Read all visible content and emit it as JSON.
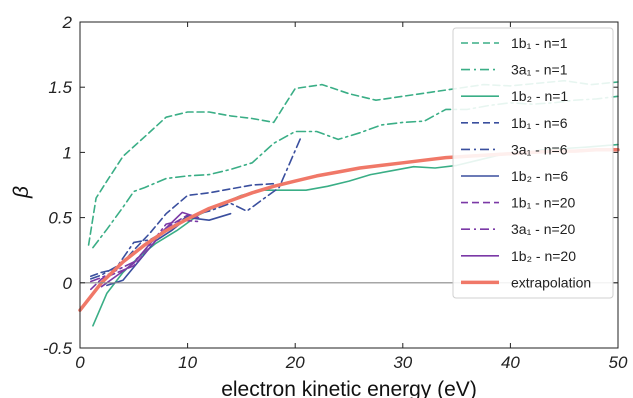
{
  "chart_data": {
    "type": "line",
    "xlabel": "electron kinetic energy (eV)",
    "ylabel": "β",
    "xlim": [
      0,
      50
    ],
    "ylim": [
      -0.5,
      2
    ],
    "xticks": [
      "0",
      "10",
      "20",
      "30",
      "40",
      "50"
    ],
    "yticks": [
      "-0.5",
      "0",
      "0.5",
      "1",
      "1.5",
      "2"
    ],
    "zero_line": true,
    "grid": false,
    "legend_position": "top-right",
    "series": [
      {
        "name": "1b₁ - n=1",
        "color": "#3aae86",
        "dash": "dashed",
        "x": [
          0.8,
          1.5,
          2.5,
          4,
          6,
          8,
          10,
          12,
          14,
          16,
          18,
          20,
          22.5,
          25,
          27.5,
          30,
          32.5,
          35,
          37.5,
          40,
          42.5,
          45,
          47.5,
          50
        ],
        "y": [
          0.29,
          0.65,
          0.78,
          0.97,
          1.12,
          1.27,
          1.31,
          1.31,
          1.28,
          1.26,
          1.23,
          1.49,
          1.52,
          1.45,
          1.4,
          1.43,
          1.46,
          1.49,
          1.52,
          1.51,
          1.53,
          1.55,
          1.52,
          1.54
        ]
      },
      {
        "name": "3a₁ - n=1",
        "color": "#3aae86",
        "dash": "dashdot",
        "x": [
          1.2,
          2.5,
          4,
          5,
          6,
          8,
          10,
          12,
          14,
          16,
          18,
          20,
          22,
          24,
          26,
          28,
          30,
          32,
          34,
          36,
          38,
          40,
          42,
          44,
          46,
          48,
          50
        ],
        "y": [
          0.27,
          0.41,
          0.58,
          0.7,
          0.73,
          0.8,
          0.82,
          0.83,
          0.87,
          0.92,
          1.07,
          1.16,
          1.16,
          1.1,
          1.15,
          1.21,
          1.23,
          1.24,
          1.33,
          1.33,
          1.36,
          1.38,
          1.37,
          1.38,
          1.4,
          1.41,
          1.43
        ]
      },
      {
        "name": "1b₂ - n=1",
        "color": "#3aae86",
        "dash": "solid",
        "x": [
          1.2,
          2.5,
          4,
          5.5,
          7,
          9,
          11,
          13,
          15,
          17,
          19,
          21,
          23,
          25,
          27,
          29,
          31,
          33,
          35,
          37,
          39,
          41,
          43,
          45,
          47,
          50
        ],
        "y": [
          -0.33,
          -0.08,
          0.08,
          0.2,
          0.3,
          0.4,
          0.52,
          0.6,
          0.67,
          0.71,
          0.71,
          0.71,
          0.74,
          0.78,
          0.83,
          0.86,
          0.89,
          0.88,
          0.9,
          0.94,
          0.98,
          0.99,
          1.02,
          1.03,
          1.04,
          1.06
        ]
      },
      {
        "name": "1b₁ - n=6",
        "color": "#3a4f9e",
        "dash": "dashed",
        "x": [
          1,
          2,
          3.5,
          5,
          6.5,
          8,
          10,
          12,
          14,
          16,
          18
        ],
        "y": [
          0.05,
          0.08,
          0.11,
          0.25,
          0.38,
          0.53,
          0.67,
          0.69,
          0.72,
          0.75,
          0.76
        ]
      },
      {
        "name": "3a₁ - n=6",
        "color": "#3a4f9e",
        "dash": "dashdot",
        "x": [
          1,
          2,
          3.5,
          5,
          6.5,
          8,
          10,
          12,
          14,
          15.5,
          17,
          18.5,
          20.5
        ],
        "y": [
          0.03,
          0.06,
          0.13,
          0.31,
          0.33,
          0.4,
          0.51,
          0.55,
          0.61,
          0.55,
          0.64,
          0.73,
          1.11
        ]
      },
      {
        "name": "1b₂ - n=6",
        "color": "#3a4f9e",
        "dash": "solid",
        "x": [
          2.5,
          4,
          5.5,
          7,
          8.5,
          10,
          12,
          14
        ],
        "y": [
          -0.02,
          0.02,
          0.17,
          0.32,
          0.4,
          0.5,
          0.48,
          0.53
        ]
      },
      {
        "name": "1b₁ - n=20",
        "color": "#7b39a6",
        "dash": "dashed",
        "x": [
          1,
          2,
          3.5,
          5,
          6.5,
          8,
          10,
          11
        ],
        "y": [
          -0.05,
          0.03,
          0.08,
          0.13,
          0.27,
          0.42,
          0.52,
          0.5
        ]
      },
      {
        "name": "3a₁ - n=20",
        "color": "#7b39a6",
        "dash": "dashdot",
        "x": [
          1,
          2,
          3.5,
          5,
          6.5,
          8,
          9.5,
          11
        ],
        "y": [
          0.01,
          0.04,
          0.1,
          0.16,
          0.29,
          0.45,
          0.48,
          0.47
        ]
      },
      {
        "name": "1b₂ - n=20",
        "color": "#7b39a6",
        "dash": "solid",
        "x": [
          2,
          3.5,
          5,
          6.5,
          8,
          9.5,
          11
        ],
        "y": [
          -0.03,
          0.06,
          0.15,
          0.3,
          0.42,
          0.54,
          0.5
        ]
      },
      {
        "name": "extrapolation",
        "color": "#f07868",
        "dash": "thick",
        "x": [
          0,
          2,
          4,
          6,
          8,
          10,
          12,
          14,
          16,
          18,
          20,
          22,
          24,
          26,
          28,
          30,
          32,
          34,
          36,
          38,
          40,
          42,
          44,
          46,
          48,
          50
        ],
        "y": [
          -0.21,
          0.0,
          0.16,
          0.29,
          0.4,
          0.49,
          0.57,
          0.63,
          0.69,
          0.74,
          0.78,
          0.82,
          0.85,
          0.88,
          0.9,
          0.92,
          0.94,
          0.96,
          0.97,
          0.98,
          0.99,
          1.0,
          1.01,
          1.01,
          1.02,
          1.02
        ]
      }
    ]
  }
}
